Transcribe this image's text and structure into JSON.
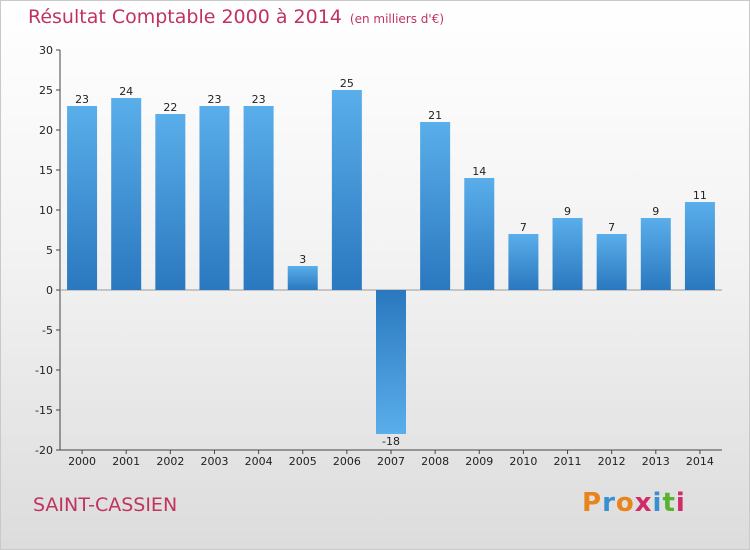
{
  "header": {
    "title": "Résultat Comptable 2000 à 2014",
    "unit": "(en milliers d'€)"
  },
  "footer": {
    "city": "SAINT-CASSIEN",
    "logo_letters": [
      "P",
      "r",
      "o",
      "x",
      "i",
      "t",
      "i"
    ],
    "logo_colors": [
      "#e8841a",
      "#3a8fd0",
      "#e8841a",
      "#d12c6a",
      "#3a8fd0",
      "#5bb130",
      "#d12c6a"
    ]
  },
  "colors": {
    "bar_top": "#5aaeea",
    "bar_bottom": "#2a78bf",
    "title": "#c0335f"
  },
  "chart_data": {
    "type": "bar",
    "categories": [
      "2000",
      "2001",
      "2002",
      "2003",
      "2004",
      "2005",
      "2006",
      "2007",
      "2008",
      "2009",
      "2010",
      "2011",
      "2012",
      "2013",
      "2014"
    ],
    "values": [
      23,
      24,
      22,
      23,
      23,
      3,
      25,
      -18,
      21,
      14,
      7,
      9,
      7,
      9,
      11
    ],
    "value_labels": [
      "23",
      "24",
      "22",
      "23",
      "23",
      "3",
      "25",
      "-18",
      "21",
      "14",
      "7",
      "9",
      "7",
      "9",
      "11"
    ],
    "yticks": [
      30,
      25,
      20,
      15,
      10,
      5,
      0,
      -5,
      -10,
      -15,
      -20
    ],
    "ytick_labels": [
      "30",
      "25",
      "20",
      "15",
      "10",
      "5",
      "0",
      "-5",
      "-10",
      "-15",
      "-20"
    ],
    "ylim": [
      -20,
      30
    ],
    "grid": false,
    "legend": "none"
  }
}
